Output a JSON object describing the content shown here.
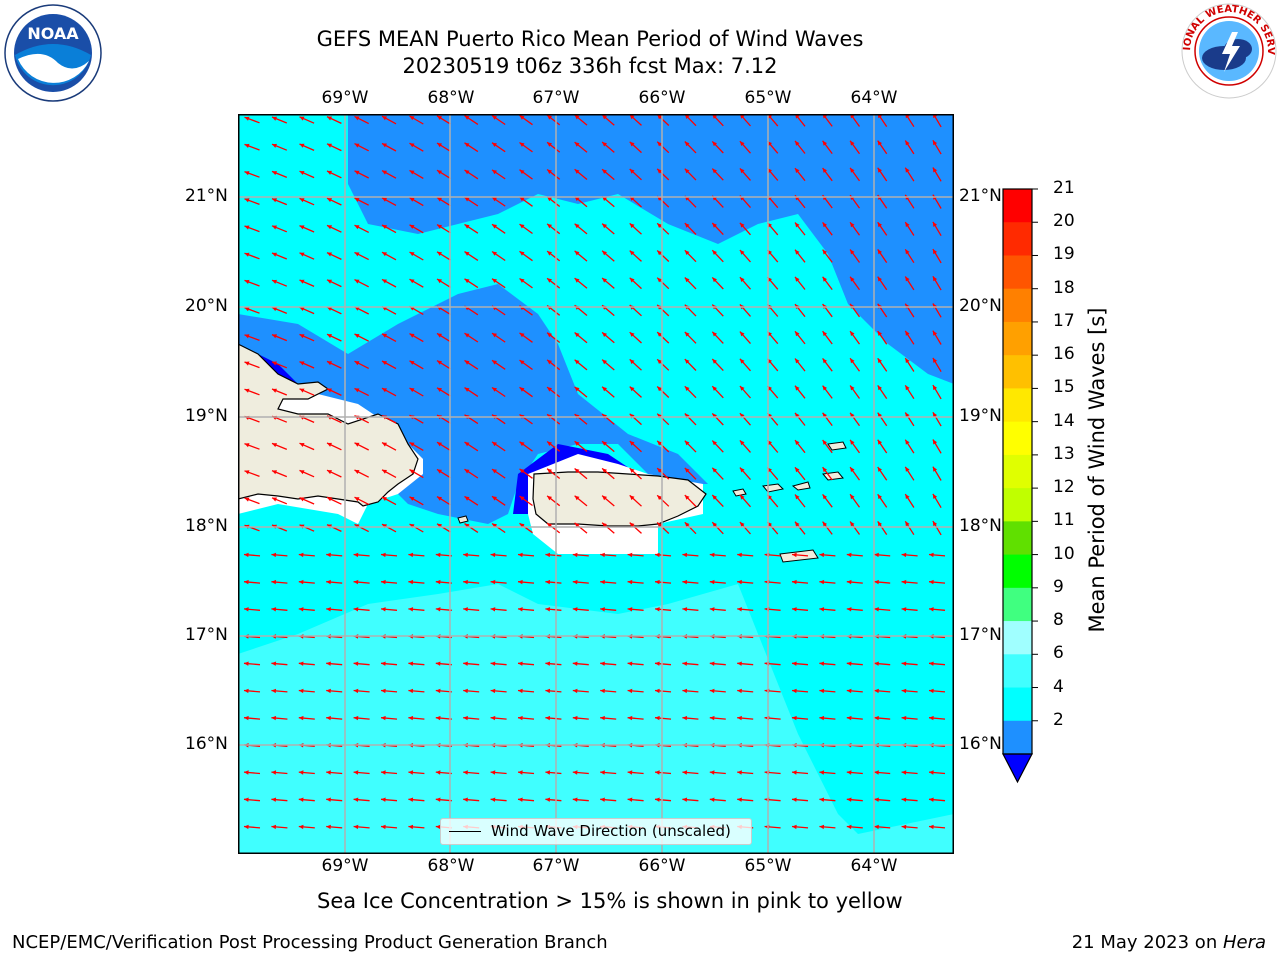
{
  "title": {
    "line1": "GEFS MEAN Puerto Rico Mean Period of Wind Waves",
    "line2": "20230519 t06z 336h fcst   Max: 7.12"
  },
  "subtitle": "Sea Ice Concentration > 15% is shown in pink to yellow",
  "footer": {
    "left": "NCEP/EMC/Verification Post Processing Product Generation Branch",
    "right_date": "21 May 2023 on ",
    "right_host": "Hera"
  },
  "logos": {
    "left": "noaa-logo",
    "right": "national-weather-service-logo",
    "right_text": "NATIONAL WEATHER SERVICE",
    "left_text": "NOAA"
  },
  "map": {
    "lon_labels": [
      "69°W",
      "68°W",
      "67°W",
      "66°W",
      "65°W",
      "64°W"
    ],
    "lat_labels": [
      "21°N",
      "20°N",
      "19°N",
      "18°N",
      "17°N",
      "16°N"
    ],
    "legend_label": "Wind Wave Direction (unscaled)",
    "colors": {
      "ocean_low": "#1e90ff",
      "ocean_mid": "#00ffff",
      "ocean_high": "#40ffff",
      "land": "#efedde",
      "arrow": "#ff0000",
      "grid": "#b0b0b0"
    }
  },
  "colorbar": {
    "label": "Mean Period of Wind Waves [s]",
    "ticks": [
      "21",
      "20",
      "19",
      "18",
      "17",
      "16",
      "15",
      "14",
      "13",
      "12",
      "11",
      "10",
      "9",
      "8",
      "6",
      "4",
      "2"
    ],
    "colors": [
      "#ff0000",
      "#ff2a00",
      "#ff5500",
      "#ff8000",
      "#ffa000",
      "#ffc000",
      "#ffe800",
      "#ffff00",
      "#e0ff00",
      "#c0ff00",
      "#60e000",
      "#00ff00",
      "#40ff80",
      "#a0ffff",
      "#40ffff",
      "#00ffff",
      "#1e90ff",
      "#0000ff"
    ]
  }
}
